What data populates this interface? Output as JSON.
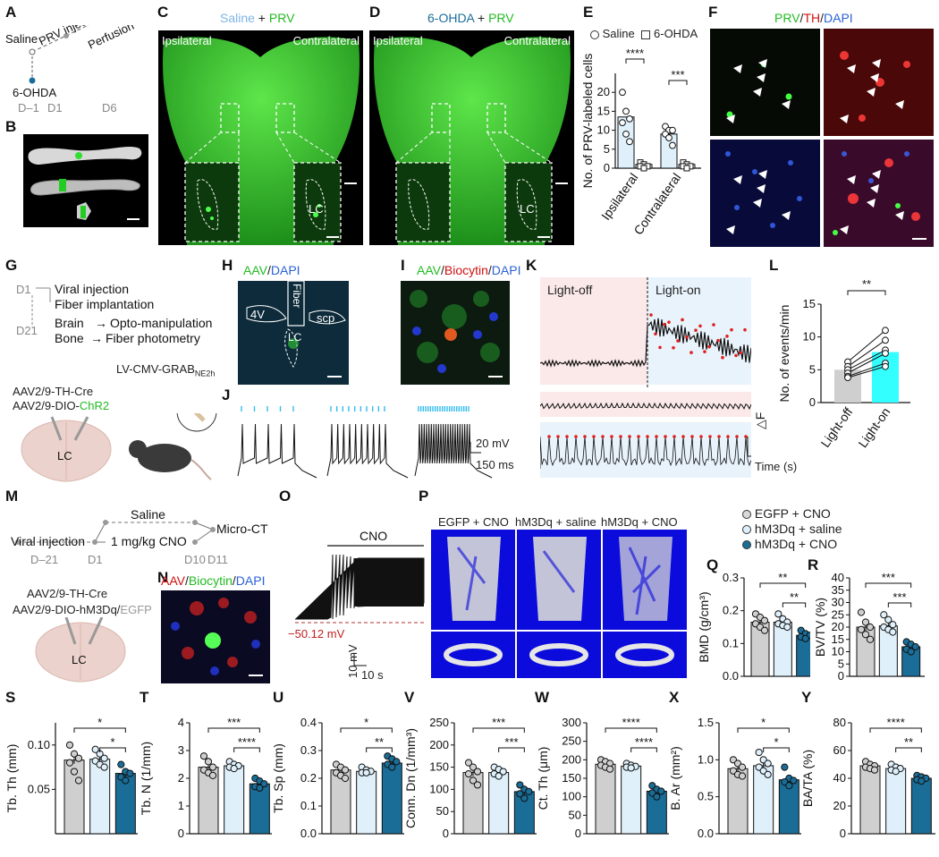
{
  "panels": {
    "A": "A",
    "B": "B",
    "C": "C",
    "D": "D",
    "E": "E",
    "F": "F",
    "G": "G",
    "H": "H",
    "I": "I",
    "J": "J",
    "K": "K",
    "L": "L",
    "M": "M",
    "N": "N",
    "O": "O",
    "P": "P",
    "Q": "Q",
    "R": "R",
    "S": "S",
    "T": "T",
    "U": "U",
    "V": "V",
    "W": "W",
    "X": "X",
    "Y": "Y"
  },
  "colors": {
    "saline": "#dff0fb",
    "gray": "#cfcfcf",
    "dark_blue": "#1a6d97",
    "cyan": "#33ffff",
    "green": "#22cc22",
    "red": "#e01010",
    "blue": "#2a62d8"
  },
  "panelA": {
    "saline": "Saline",
    "prv": "PRV injection",
    "perfusion": "Perfusion",
    "ohda": "6-OHDA",
    "d_1": "D–1",
    "d1": "D1",
    "d6": "D6"
  },
  "panelC": {
    "title_a": "Saline",
    "title_plus": " + ",
    "title_b": "PRV",
    "ipsi": "Ipsilateral",
    "contra": "Contralateral",
    "lc": "LC"
  },
  "panelD": {
    "title_a": "6-OHDA",
    "title_plus": " + ",
    "title_b": "PRV",
    "ipsi": "Ipsilateral",
    "contra": "Contralateral",
    "lc": "LC"
  },
  "panelF": {
    "prv": "PRV",
    "th": "TH",
    "dapi": "DAPI",
    "slash": "/"
  },
  "panelG": {
    "d1": "D1",
    "d21": "D21",
    "viral": "Viral injection",
    "fiber": "Fiber implantation",
    "brain": "Brain",
    "opto": "Opto-manipulation",
    "bone": "Bone",
    "photo": "Fiber photometry",
    "lv": "LV-CMV-GRAB",
    "lv_sub": "NE2h",
    "aav1": "AAV2/9-TH-Cre",
    "aav2": "AAV2/9-DIO-",
    "chr2": "ChR2",
    "lc": "LC"
  },
  "panelH": {
    "aav": "AAV",
    "dapi": "DAPI",
    "fiber": "Fiber",
    "v4": "4V",
    "scp": "scp",
    "lc": "LC"
  },
  "panelI": {
    "aav": "AAV",
    "biocytin": "Biocytin",
    "dapi": "DAPI"
  },
  "panelJ": {
    "scale_v": "20 mV",
    "scale_t": "150 ms"
  },
  "panelK": {
    "off": "Light-off",
    "on": "Light-on",
    "df": "△F",
    "time": "Time (s)"
  },
  "panelM": {
    "saline": "Saline",
    "viral": "Viral injection",
    "cno": "1 mg/kg CNO",
    "micro": "Micro-CT",
    "d_21": "D–21",
    "d1": "D1",
    "d10": "D10",
    "d11": "D11",
    "aav1": "AAV2/9-TH-Cre",
    "aav2": "AAV2/9-DIO-hM3Dq/",
    "egfp": "EGFP",
    "lc": "LC"
  },
  "panelN": {
    "aav": "AAV",
    "biocytin": "Biocytin",
    "dapi": "DAPI"
  },
  "panelO": {
    "cno": "CNO",
    "mv": "−50.12 mV",
    "scale_v": "10 mV",
    "scale_t": "10 s"
  },
  "panelP": {
    "g1": "EGFP + CNO",
    "g2": "hM3Dq + saline",
    "g3": "hM3Dq + CNO"
  },
  "legendQ": [
    "EGFP + CNO",
    "hM3Dq + saline",
    "hM3Dq + CNO"
  ],
  "legendE": [
    "Saline",
    "6-OHDA"
  ],
  "chart_data": [
    {
      "panel": "E",
      "type": "bar",
      "ylabel": "No. of PRV-labeled cells",
      "categories": [
        "Ipsilateral",
        "Contralateral"
      ],
      "series": [
        {
          "name": "Saline",
          "values": [
            13.5,
            9
          ]
        },
        {
          "name": "6-OHDA",
          "values": [
            1,
            1
          ]
        }
      ],
      "points": {
        "Saline": [
          [
            20,
            15,
            13,
            12,
            9,
            7
          ],
          [
            11,
            10,
            10,
            9,
            8,
            6
          ]
        ],
        "6-OHDA": [
          [
            1.5,
            1,
            0.5,
            0.5,
            0
          ],
          [
            1.5,
            1,
            0.5,
            0.5,
            0
          ]
        ]
      },
      "ylim": [
        0,
        25
      ],
      "yticks": [
        0,
        5,
        10,
        15,
        20
      ],
      "sig": [
        "****",
        "***"
      ]
    },
    {
      "panel": "L",
      "type": "bar",
      "ylabel": "No. of events/min",
      "categories": [
        "Light-off",
        "Light-on"
      ],
      "values": [
        5,
        7.7
      ],
      "ylim": [
        0,
        15
      ],
      "yticks": [
        0,
        5,
        10,
        15
      ],
      "sig": "**",
      "pairs": [
        [
          6.2,
          11
        ],
        [
          5.5,
          9.5
        ],
        [
          5,
          8
        ],
        [
          4.5,
          7.5
        ],
        [
          4,
          6
        ],
        [
          3.8,
          5.5
        ]
      ]
    },
    {
      "panel": "Q",
      "type": "bar",
      "ylabel": "BMD (g/cm³)",
      "ylim": [
        0,
        0.3
      ],
      "yticks": [
        "0.0",
        "0.1",
        "0.2",
        "0.3"
      ],
      "values": [
        0.165,
        0.165,
        0.125
      ],
      "sig": [
        "**",
        "**"
      ],
      "points": [
        [
          0.19,
          0.18,
          0.17,
          0.16,
          0.15,
          0.14
        ],
        [
          0.19,
          0.175,
          0.165,
          0.16,
          0.155,
          0.15
        ],
        [
          0.14,
          0.13,
          0.125,
          0.12,
          0.115
        ]
      ]
    },
    {
      "panel": "R",
      "type": "bar",
      "ylabel": "BV/TV (%)",
      "ylim": [
        0,
        40
      ],
      "yticks": [
        "0",
        "5",
        "10",
        "15",
        "20",
        "25",
        "30",
        "35",
        "40"
      ],
      "values": [
        20,
        20.5,
        12
      ],
      "sig": [
        "***",
        "***"
      ],
      "points": [
        [
          26,
          22,
          20,
          19,
          17,
          15
        ],
        [
          25,
          23,
          21,
          20,
          19,
          18
        ],
        [
          14,
          13,
          12,
          11,
          10
        ]
      ]
    },
    {
      "panel": "S",
      "type": "bar",
      "ylabel": "Tb. Th (mm)",
      "ylim": [
        0,
        0.125
      ],
      "yticks": [
        "0.05",
        "0.10"
      ],
      "values": [
        0.083,
        0.084,
        0.068
      ],
      "sig": [
        "*",
        "*"
      ],
      "points": [
        [
          0.1,
          0.09,
          0.085,
          0.08,
          0.07,
          0.06
        ],
        [
          0.095,
          0.09,
          0.085,
          0.082,
          0.078,
          0.075
        ],
        [
          0.078,
          0.07,
          0.068,
          0.064,
          0.06
        ]
      ]
    },
    {
      "panel": "T",
      "type": "bar",
      "ylabel": "Tb. N (1/mm)",
      "ylim": [
        0,
        4
      ],
      "yticks": [
        "0",
        "1",
        "2",
        "3",
        "4"
      ],
      "values": [
        2.4,
        2.45,
        1.8
      ],
      "sig": [
        "***",
        "****"
      ],
      "points": [
        [
          2.8,
          2.6,
          2.4,
          2.3,
          2.2,
          2.1
        ],
        [
          2.6,
          2.5,
          2.45,
          2.4,
          2.35
        ],
        [
          2,
          1.9,
          1.8,
          1.7,
          1.65
        ]
      ]
    },
    {
      "panel": "U",
      "type": "bar",
      "ylabel": "Tb. Sp (mm)",
      "ylim": [
        0,
        0.4
      ],
      "yticks": [
        "0.0",
        "0.1",
        "0.2",
        "0.3",
        "0.4"
      ],
      "values": [
        0.23,
        0.225,
        0.255
      ],
      "sig": [
        "*",
        "**"
      ],
      "points": [
        [
          0.25,
          0.24,
          0.23,
          0.22,
          0.21,
          0.2
        ],
        [
          0.24,
          0.23,
          0.225,
          0.22,
          0.22
        ],
        [
          0.28,
          0.27,
          0.26,
          0.25,
          0.24
        ]
      ]
    },
    {
      "panel": "V",
      "type": "bar",
      "ylabel": "Conn. Dn (1/mm³)",
      "ylim": [
        0,
        250
      ],
      "yticks": [
        "0",
        "50",
        "100",
        "150",
        "200",
        "250"
      ],
      "values": [
        138,
        138,
        95
      ],
      "sig": [
        "***",
        "***"
      ],
      "points": [
        [
          160,
          150,
          140,
          135,
          120,
          110
        ],
        [
          150,
          145,
          140,
          135,
          130
        ],
        [
          110,
          100,
          95,
          90,
          80
        ]
      ]
    },
    {
      "panel": "W",
      "type": "bar",
      "ylabel": "Ct. Th (μm)",
      "ylim": [
        0,
        300
      ],
      "yticks": [
        "0",
        "50",
        "100",
        "150",
        "200",
        "250",
        "300"
      ],
      "values": [
        188,
        183,
        115
      ],
      "sig": [
        "****",
        "****"
      ],
      "points": [
        [
          200,
          195,
          190,
          185,
          180,
          175
        ],
        [
          190,
          185,
          182,
          180,
          178
        ],
        [
          130,
          120,
          115,
          110,
          100
        ]
      ]
    },
    {
      "panel": "X",
      "type": "bar",
      "ylabel": "B. Ar (mm²)",
      "ylim": [
        0,
        1.5
      ],
      "yticks": [
        "0.0",
        "0.5",
        "1.0",
        "1.5"
      ],
      "values": [
        0.88,
        0.92,
        0.73
      ],
      "sig": [
        "*",
        "*"
      ],
      "points": [
        [
          1,
          0.95,
          0.9,
          0.85,
          0.8,
          0.78
        ],
        [
          1.1,
          1,
          0.95,
          0.9,
          0.85,
          0.8
        ],
        [
          0.9,
          0.75,
          0.72,
          0.7,
          0.65
        ]
      ]
    },
    {
      "panel": "Y",
      "type": "bar",
      "ylabel": "BA/TA (%)",
      "ylim": [
        0,
        80
      ],
      "yticks": [
        "0",
        "20",
        "40",
        "60",
        "80"
      ],
      "values": [
        49,
        47,
        40
      ],
      "sig": [
        "****",
        "**"
      ],
      "points": [
        [
          52,
          50,
          49,
          48,
          47,
          46
        ],
        [
          50,
          48,
          47,
          46,
          45
        ],
        [
          42,
          41,
          40,
          39,
          38
        ]
      ]
    }
  ]
}
